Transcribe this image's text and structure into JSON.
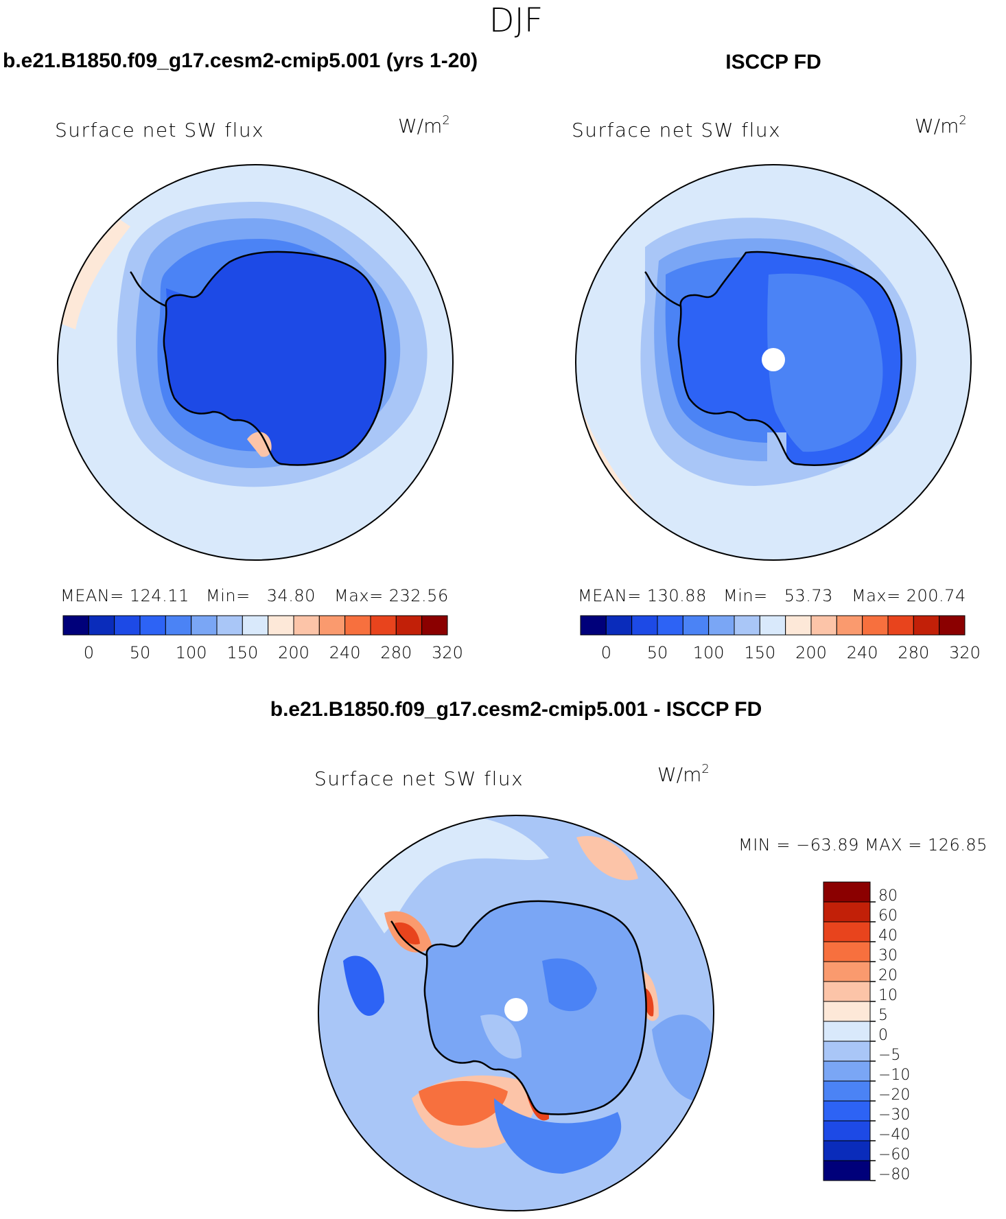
{
  "figure": {
    "title": "DJF"
  },
  "colors": {
    "abs_scale": [
      "#00007a",
      "#0a2cbb",
      "#1d4ae6",
      "#2d63f5",
      "#4b83f5",
      "#7aa6f5",
      "#a9c6f7",
      "#d9e9fb",
      "#fde8d8",
      "#fcc4a8",
      "#fa9a6e",
      "#f7703e",
      "#e8441d",
      "#c22008",
      "#8b0000"
    ],
    "diff_scale": [
      "#00007a",
      "#0a2cbb",
      "#1d4ae6",
      "#2d63f5",
      "#4b83f5",
      "#7aa6f5",
      "#a9c6f7",
      "#d9e9fb",
      "#fde8d8",
      "#fcc4a8",
      "#fa9a6e",
      "#f7703e",
      "#e8441d",
      "#c22008",
      "#8b0000"
    ],
    "coastline": "#000000"
  },
  "panels": [
    {
      "heading": "b.e21.B1850.f09_g17.cesm2-cmip5.001 (yrs 1-20)",
      "variable": "Surface net SW flux",
      "units": "W/m",
      "units_exp": "2",
      "stats": {
        "mean_label": "MEAN=",
        "mean": "124.11",
        "min_label": "Min=",
        "min": "34.80",
        "max_label": "Max=",
        "max": "232.56"
      },
      "colorbar_ticks": [
        "0",
        "50",
        "100",
        "150",
        "200",
        "240",
        "280",
        "320"
      ]
    },
    {
      "heading": "ISCCP FD",
      "variable": "Surface net SW flux",
      "units": "W/m",
      "units_exp": "2",
      "stats": {
        "mean_label": "MEAN=",
        "mean": "130.88",
        "min_label": "Min=",
        "min": "53.73",
        "max_label": "Max=",
        "max": "200.74"
      },
      "colorbar_ticks": [
        "0",
        "50",
        "100",
        "150",
        "200",
        "240",
        "280",
        "320"
      ]
    }
  ],
  "difference": {
    "heading": "b.e21.B1850.f09_g17.cesm2-cmip5.001 - ISCCP FD",
    "variable": "Surface net SW flux",
    "units": "W/m",
    "units_exp": "2",
    "minmax": "MIN = −63.89 MAX = 126.85",
    "colorbar_ticks": [
      "80",
      "60",
      "40",
      "30",
      "20",
      "10",
      "5",
      "0",
      "−5",
      "−10",
      "−20",
      "−30",
      "−40",
      "−60",
      "−80"
    ]
  }
}
